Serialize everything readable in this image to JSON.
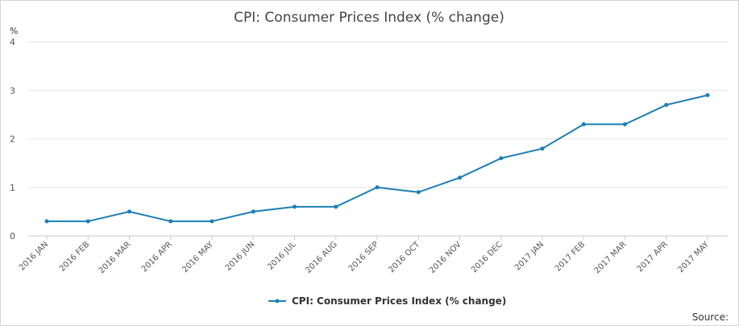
{
  "chart_data": {
    "type": "line",
    "title": "CPI: Consumer Prices Index (% change)",
    "ylabel": "%",
    "xlabel": "",
    "ylim": [
      0,
      4
    ],
    "yticks": [
      "0",
      "1",
      "2",
      "3",
      "4"
    ],
    "grid": true,
    "legend_position": "bottom-center",
    "categories": [
      "2016 JAN",
      "2016 FEB",
      "2016 MAR",
      "2016 APR",
      "2016 MAY",
      "2016 JUN",
      "2016 JUL",
      "2016 AUG",
      "2016 SEP",
      "2016 OCT",
      "2016 NOV",
      "2016 DEC",
      "2017 JAN",
      "2017 FEB",
      "2017 MAR",
      "2017 APR",
      "2017 MAY"
    ],
    "series": [
      {
        "name": "CPI: Consumer Prices Index (% change)",
        "color": "#1a7fb5",
        "values": [
          0.3,
          0.3,
          0.5,
          0.3,
          0.3,
          0.5,
          0.6,
          0.6,
          1.0,
          0.9,
          1.2,
          1.6,
          1.8,
          2.3,
          2.3,
          2.7,
          2.9
        ]
      }
    ],
    "source_label": "Source:"
  }
}
